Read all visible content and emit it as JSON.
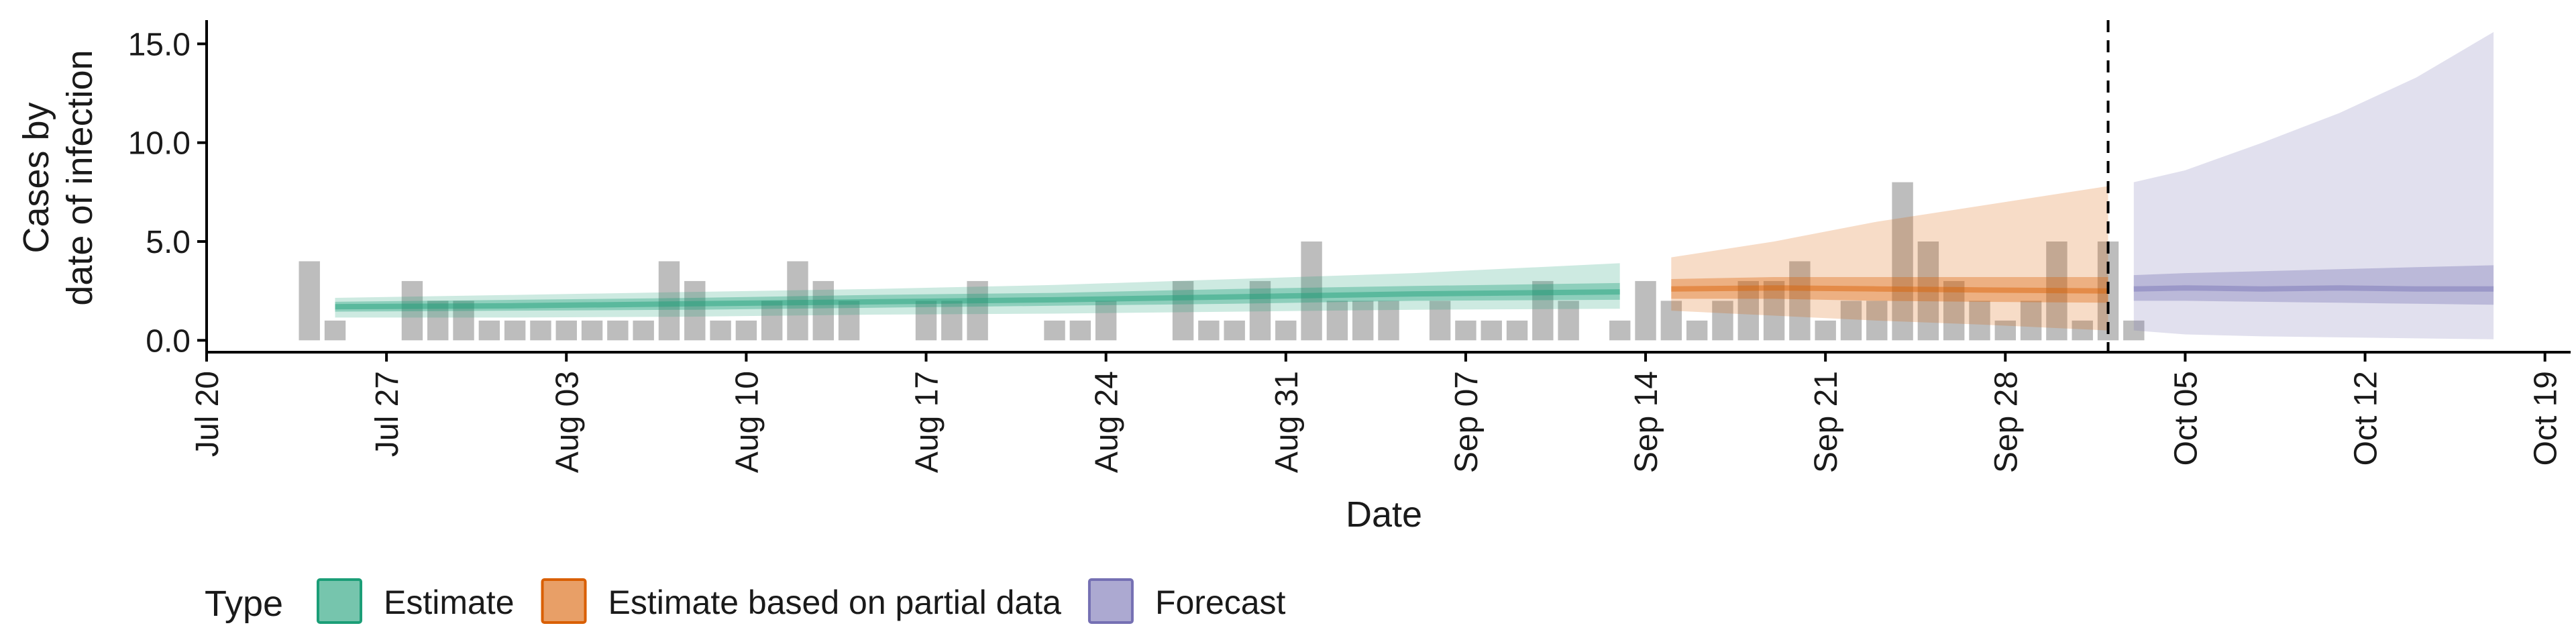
{
  "chart_data": {
    "type": "bar",
    "ylabel_line1": "Cases by",
    "ylabel_line2": "date of infection",
    "xlabel": "Date",
    "ylim": [
      -0.6,
      16.2
    ],
    "yticks": [
      0,
      5,
      10,
      15
    ],
    "ytick_labels": [
      "0.0",
      "5.0",
      "10.0",
      "15.0"
    ],
    "xlim": [
      "2020-07-20",
      "2020-10-20"
    ],
    "xticks": [
      "2020-07-20",
      "2020-07-27",
      "2020-08-03",
      "2020-08-10",
      "2020-08-17",
      "2020-08-24",
      "2020-08-31",
      "2020-09-07",
      "2020-09-14",
      "2020-09-21",
      "2020-09-28",
      "2020-10-05",
      "2020-10-12",
      "2020-10-19"
    ],
    "xtick_labels": [
      "Jul 20",
      "Jul 27",
      "Aug 03",
      "Aug 10",
      "Aug 17",
      "Aug 24",
      "Aug 31",
      "Sep 07",
      "Sep 14",
      "Sep 21",
      "Sep 28",
      "Oct 05",
      "Oct 12",
      "Oct 19"
    ],
    "reported_cases": {
      "start_date": "2020-07-24",
      "values": [
        4,
        1,
        0,
        0,
        3,
        2,
        2,
        1,
        1,
        1,
        1,
        1,
        1,
        1,
        4,
        3,
        1,
        1,
        2,
        4,
        3,
        2,
        0,
        0,
        2,
        2,
        3,
        0,
        0,
        1,
        1,
        2,
        0,
        0,
        3,
        1,
        1,
        3,
        1,
        5,
        2,
        2,
        2,
        0,
        2,
        1,
        1,
        1,
        3,
        2,
        0,
        1,
        3,
        2,
        1,
        2,
        3,
        3,
        4,
        1,
        2,
        2,
        8,
        5,
        3,
        2,
        1,
        2,
        5,
        1,
        5,
        1
      ]
    },
    "forecast_date": "2020-10-02",
    "legend": {
      "title": "Type",
      "position": "bottom-left",
      "items": [
        {
          "label": "Estimate",
          "color": "#1B9E77"
        },
        {
          "label": "Estimate based on partial data",
          "color": "#D95F02"
        },
        {
          "label": "Forecast",
          "color": "#7570B3"
        }
      ]
    },
    "series": [
      {
        "name": "Estimate",
        "color": "#1B9E77",
        "x": [
          "2020-07-25",
          "2020-08-01",
          "2020-08-08",
          "2020-08-15",
          "2020-08-22",
          "2020-08-29",
          "2020-09-05",
          "2020-09-13"
        ],
        "median": [
          1.7,
          1.75,
          1.85,
          1.95,
          2.05,
          2.2,
          2.35,
          2.45
        ],
        "inner_lower": [
          1.45,
          1.5,
          1.55,
          1.65,
          1.75,
          1.85,
          2.0,
          2.05
        ],
        "inner_upper": [
          1.95,
          2.05,
          2.15,
          2.3,
          2.4,
          2.6,
          2.75,
          2.9
        ],
        "outer_lower": [
          1.15,
          1.15,
          1.2,
          1.3,
          1.35,
          1.45,
          1.55,
          1.6
        ],
        "outer_upper": [
          2.15,
          2.3,
          2.45,
          2.6,
          2.8,
          3.1,
          3.4,
          3.9
        ]
      },
      {
        "name": "Estimate based on partial data",
        "color": "#D95F02",
        "x": [
          "2020-09-15",
          "2020-09-19",
          "2020-09-23",
          "2020-09-27",
          "2020-10-02"
        ],
        "median": [
          2.6,
          2.65,
          2.6,
          2.55,
          2.5
        ],
        "inner_lower": [
          2.1,
          2.1,
          2.0,
          1.95,
          1.9
        ],
        "inner_upper": [
          3.1,
          3.2,
          3.2,
          3.2,
          3.2
        ],
        "outer_lower": [
          1.5,
          1.25,
          1.0,
          0.8,
          0.5
        ],
        "outer_upper": [
          4.2,
          5.0,
          6.0,
          6.8,
          7.8
        ]
      },
      {
        "name": "Forecast",
        "color": "#7570B3",
        "x": [
          "2020-10-03",
          "2020-10-05",
          "2020-10-08",
          "2020-10-11",
          "2020-10-14",
          "2020-10-17"
        ],
        "median": [
          2.6,
          2.65,
          2.6,
          2.65,
          2.6,
          2.6
        ],
        "inner_lower": [
          2.0,
          2.0,
          1.95,
          1.9,
          1.85,
          1.8
        ],
        "inner_upper": [
          3.3,
          3.4,
          3.5,
          3.6,
          3.7,
          3.8
        ],
        "outer_lower": [
          0.5,
          0.3,
          0.2,
          0.15,
          0.1,
          0.05
        ],
        "outer_upper": [
          8.0,
          8.6,
          10.0,
          11.5,
          13.3,
          15.6
        ]
      }
    ]
  }
}
